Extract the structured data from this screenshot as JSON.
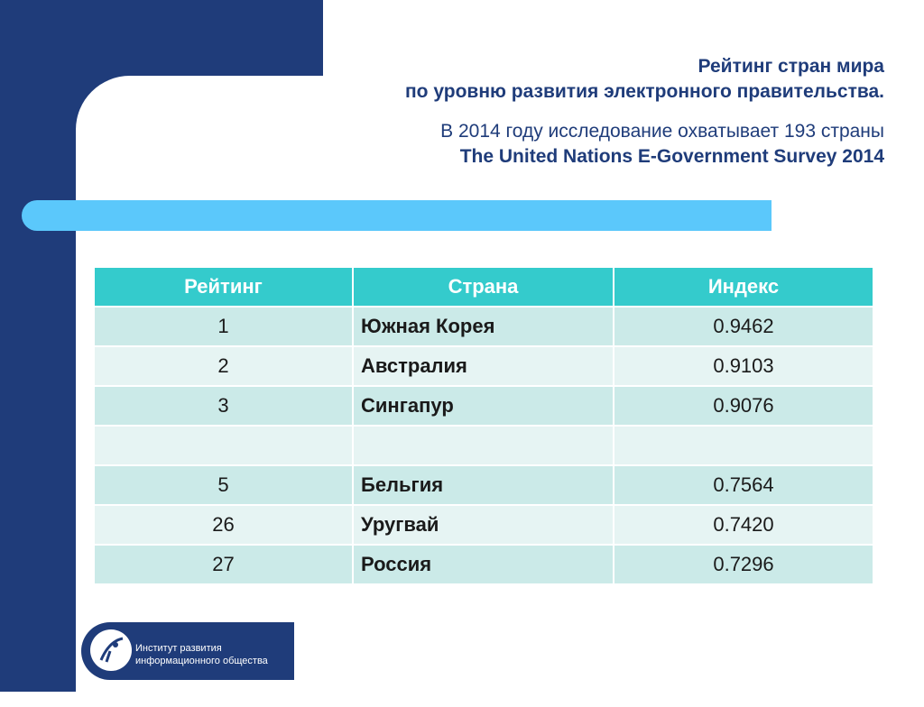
{
  "header": {
    "title_line1": "Рейтинг стран мира",
    "title_line2": "по уровню развития электронного правительства.",
    "subtitle": "В 2014 году исследование охватывает 193 страны",
    "source": "The United Nations E-Government Survey 2014"
  },
  "table": {
    "headers": [
      "Рейтинг",
      "Страна",
      "Индекс"
    ],
    "rows": [
      {
        "rank": "1",
        "country": "Южная Корея",
        "index": "0.9462"
      },
      {
        "rank": "2",
        "country": "Австралия",
        "index": "0.9103"
      },
      {
        "rank": "3",
        "country": "Сингапур",
        "index": "0.9076"
      },
      {
        "rank": "",
        "country": "",
        "index": ""
      },
      {
        "rank": "5",
        "country": "Бельгия",
        "index": "0.7564"
      },
      {
        "rank": "26",
        "country": "Уругвай",
        "index": "0.7420"
      },
      {
        "rank": "27",
        "country": "Россия",
        "index": "0.7296"
      }
    ]
  },
  "logo": {
    "line1": "Институт развития",
    "line2": "информационного общества"
  },
  "colors": {
    "navy": "#1f3c7a",
    "accent": "#5bc8fb",
    "table_header": "#34cbcc",
    "row_odd": "#cbeae8",
    "row_even": "#e6f4f3"
  }
}
